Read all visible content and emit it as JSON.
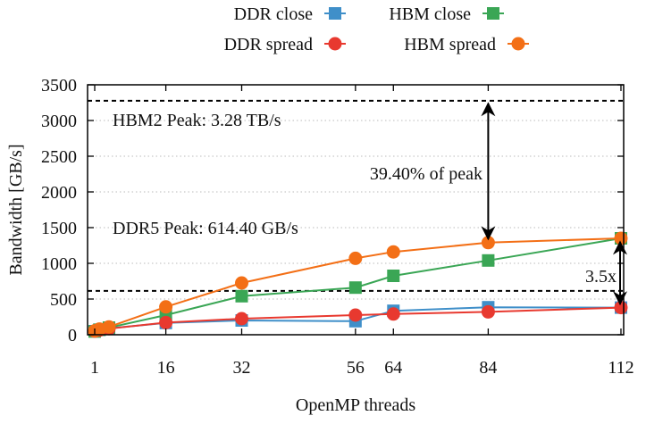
{
  "chart_data": {
    "type": "line",
    "xlabel": "OpenMP threads",
    "ylabel": "Bandwidth [GB/s]",
    "xticks": [
      1,
      16,
      32,
      56,
      64,
      84,
      112
    ],
    "yticks": [
      0,
      500,
      1000,
      1500,
      2000,
      2500,
      3000,
      3500
    ],
    "xlim": [
      0,
      113
    ],
    "ylim": [
      0,
      3500
    ],
    "grid": "horizontal dotted",
    "legend_position": "top",
    "series": [
      {
        "name": "DDR close",
        "marker": "square",
        "color": "#3f8fc9",
        "x": [
          1,
          2,
          4,
          16,
          32,
          56,
          64,
          84,
          112
        ],
        "y": [
          50,
          70,
          90,
          165,
          200,
          190,
          335,
          385,
          380
        ]
      },
      {
        "name": "HBM close",
        "marker": "square",
        "color": "#3aa655",
        "x": [
          1,
          2,
          4,
          16,
          32,
          56,
          64,
          84,
          112
        ],
        "y": [
          45,
          70,
          100,
          275,
          540,
          660,
          825,
          1040,
          1350
        ]
      },
      {
        "name": "DDR spread",
        "marker": "circle",
        "color": "#e8392f",
        "x": [
          1,
          2,
          4,
          16,
          32,
          56,
          64,
          84,
          112
        ],
        "y": [
          50,
          65,
          85,
          170,
          225,
          275,
          290,
          320,
          380
        ]
      },
      {
        "name": "HBM spread",
        "marker": "circle",
        "color": "#f36f16",
        "x": [
          1,
          2,
          4,
          16,
          32,
          56,
          64,
          84,
          112
        ],
        "y": [
          55,
          80,
          110,
          390,
          725,
          1070,
          1160,
          1290,
          1350
        ]
      }
    ],
    "reference_lines": [
      {
        "label": "HBM2 Peak: 3.28 TB/s",
        "y": 3276.8
      },
      {
        "label": "DDR5 Peak: 614.40 GB/s",
        "y": 614.4
      }
    ],
    "annotations": [
      {
        "text": "39.40% of peak",
        "x": 84,
        "from": 1291,
        "to": 3276.8
      },
      {
        "text": "3.5x",
        "x": 112,
        "from": 380,
        "to": 1350
      }
    ]
  }
}
